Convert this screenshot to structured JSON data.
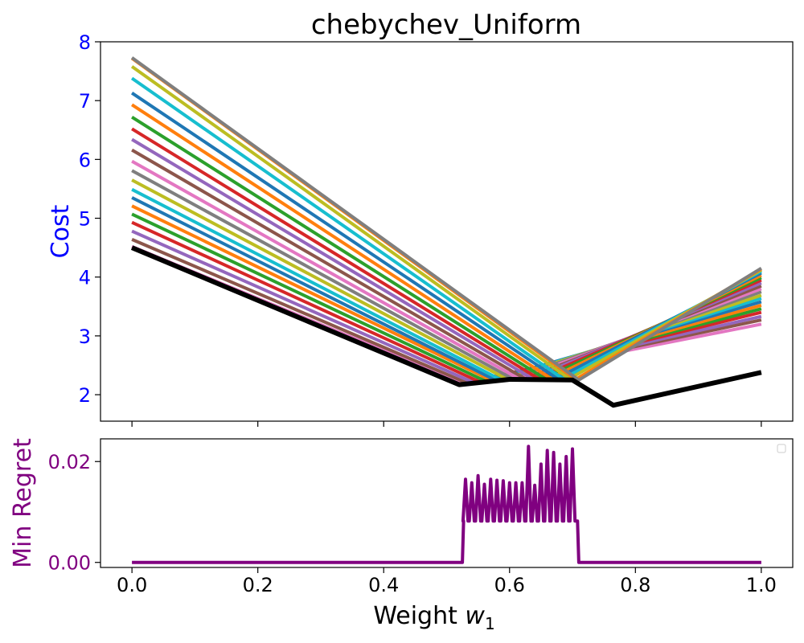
{
  "chart_data": [
    {
      "type": "line",
      "title": "chebychev_Uniform",
      "xlabel": "",
      "ylabel": "Cost",
      "xlim": [
        -0.05,
        1.05
      ],
      "ylim": [
        1.55,
        8.0
      ],
      "x_ticks": [
        0.0,
        0.2,
        0.4,
        0.6,
        0.8,
        1.0
      ],
      "y_ticks": [
        2,
        3,
        4,
        5,
        6,
        7,
        8
      ],
      "y_tick_labels": [
        "2",
        "3",
        "4",
        "5",
        "6",
        "7",
        "8"
      ],
      "tick_color": "#0000ff",
      "ylabel_color": "#0000ff",
      "grid": false,
      "series_family": {
        "description_of_shape": "V-shaped lines: linear from (0, start) down to a breakpoint, then linear up to (1, end)",
        "start_values": [
          4.52,
          4.64,
          4.78,
          4.93,
          5.07,
          5.21,
          5.35,
          5.49,
          5.65,
          5.81,
          5.97,
          6.16,
          6.34,
          6.52,
          6.72,
          6.93,
          7.13,
          7.38,
          7.58,
          7.72,
          7.73
        ],
        "breakpoints_x": [
          0.525,
          0.53,
          0.54,
          0.55,
          0.56,
          0.57,
          0.575,
          0.585,
          0.595,
          0.605,
          0.615,
          0.625,
          0.635,
          0.645,
          0.655,
          0.665,
          0.675,
          0.685,
          0.695,
          0.705,
          0.71
        ],
        "breakpoints_y": [
          2.2,
          2.21,
          2.22,
          2.23,
          2.24,
          2.25,
          2.26,
          2.26,
          2.27,
          2.27,
          2.27,
          2.27,
          2.28,
          2.28,
          2.28,
          2.28,
          2.28,
          2.27,
          2.27,
          2.26,
          2.25
        ],
        "end_values": [
          3.2,
          3.27,
          3.33,
          3.4,
          3.46,
          3.52,
          3.58,
          3.64,
          3.69,
          3.75,
          3.8,
          3.85,
          3.9,
          3.95,
          3.99,
          4.03,
          4.07,
          4.1,
          4.12,
          4.14,
          4.15
        ],
        "colors": [
          "#e377c2",
          "#8c564b",
          "#9467bd",
          "#d62728",
          "#2ca02c",
          "#ff7f0e",
          "#1f77b4",
          "#17becf",
          "#bcbd22",
          "#7f7f7f",
          "#e377c2",
          "#8c564b",
          "#9467bd",
          "#d62728",
          "#2ca02c",
          "#ff7f0e",
          "#1f77b4",
          "#17becf",
          "#bcbd22",
          "#ff7f0e",
          "#7f7f7f"
        ]
      },
      "envelope": {
        "color": "#000000",
        "x": [
          0.0,
          0.52,
          0.6,
          0.7,
          0.765,
          1.0
        ],
        "y": [
          4.5,
          2.17,
          2.26,
          2.25,
          1.82,
          2.38
        ]
      }
    },
    {
      "type": "line",
      "title": "",
      "xlabel": "Weight w",
      "xlabel_subscript": "1",
      "ylabel": "Min Regret",
      "xlim": [
        -0.05,
        1.05
      ],
      "ylim": [
        -0.001,
        0.0245
      ],
      "x_ticks": [
        0.0,
        0.2,
        0.4,
        0.6,
        0.8,
        1.0
      ],
      "x_tick_labels": [
        "0.0",
        "0.2",
        "0.4",
        "0.6",
        "0.8",
        "1.0"
      ],
      "y_ticks": [
        0.0,
        0.02
      ],
      "y_tick_labels": [
        "0.00",
        "0.02"
      ],
      "tick_color": "#800080",
      "ylabel_color": "#800080",
      "series_color": "#800080",
      "grid": false,
      "legend": "top-right",
      "spikes": {
        "x": [
          0.53,
          0.54,
          0.55,
          0.56,
          0.57,
          0.58,
          0.59,
          0.6,
          0.61,
          0.62,
          0.63,
          0.64,
          0.65,
          0.66,
          0.67,
          0.68,
          0.69,
          0.7
        ],
        "y": [
          0.0165,
          0.0158,
          0.0172,
          0.0155,
          0.0165,
          0.0163,
          0.0162,
          0.0158,
          0.0158,
          0.0158,
          0.023,
          0.0153,
          0.0195,
          0.0222,
          0.0218,
          0.0195,
          0.021,
          0.0225
        ],
        "base": 0.0082,
        "region": [
          0.525,
          0.71
        ]
      }
    }
  ]
}
